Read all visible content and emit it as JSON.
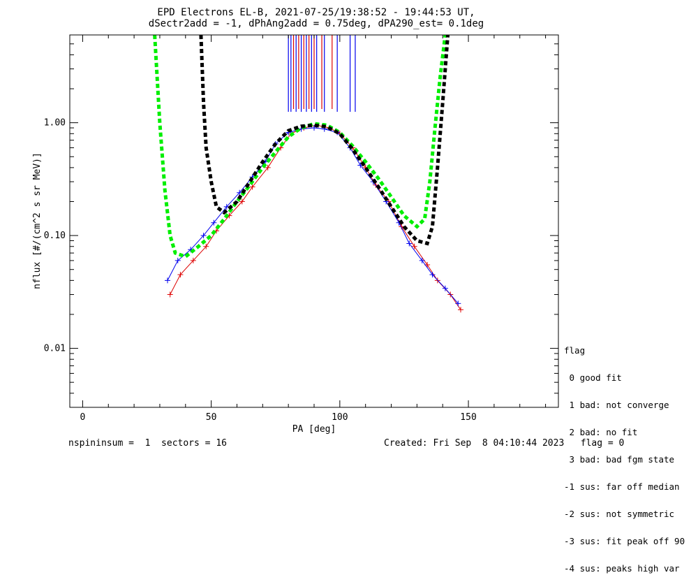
{
  "chart_data": {
    "type": "scatter",
    "title": "EPD Electrons EL-B, 2021-07-25/19:38:52 - 19:44:53 UT,",
    "subtitle": "dSectr2add = -1, dPhAng2add = 0.75deg, dPA290_est=   0.1deg",
    "xlabel": "PA [deg]",
    "ylabel": "nflux [#/(cm^2 s sr MeV)]",
    "xlim": [
      -5,
      185
    ],
    "ylim": [
      0.003,
      6
    ],
    "y_scale": "log",
    "x_ticks": [
      0,
      50,
      100,
      150
    ],
    "x_tick_labels": [
      "0",
      "50",
      "100",
      "150"
    ],
    "y_ticks": [
      0.01,
      0.1,
      1.0
    ],
    "y_tick_labels": [
      "0.01",
      "0.10",
      "1.00"
    ],
    "colors": {
      "red": "#dd0000",
      "blue": "#0000ee",
      "green": "#00ee00",
      "black": "#000000"
    },
    "series": [
      {
        "color": "#dd0000",
        "style": "line+cross",
        "x": [
          34,
          38,
          43,
          48,
          52,
          57,
          62,
          66,
          72,
          77,
          81,
          86,
          91,
          96,
          100,
          105,
          110,
          114,
          119,
          124,
          129,
          134,
          138,
          143,
          147
        ],
        "y": [
          0.03,
          0.045,
          0.06,
          0.08,
          0.11,
          0.15,
          0.2,
          0.27,
          0.4,
          0.6,
          0.8,
          0.9,
          0.95,
          0.9,
          0.8,
          0.6,
          0.4,
          0.28,
          0.2,
          0.12,
          0.08,
          0.055,
          0.04,
          0.03,
          0.022
        ]
      },
      {
        "color": "#0000ee",
        "style": "line+cross",
        "x": [
          33,
          37,
          42,
          47,
          51,
          56,
          61,
          66,
          71,
          75,
          80,
          85,
          90,
          94,
          99,
          104,
          108,
          113,
          118,
          123,
          127,
          132,
          136,
          141,
          146
        ],
        "y": [
          0.04,
          0.06,
          0.075,
          0.1,
          0.13,
          0.18,
          0.24,
          0.33,
          0.45,
          0.65,
          0.82,
          0.88,
          0.9,
          0.88,
          0.82,
          0.6,
          0.42,
          0.3,
          0.2,
          0.13,
          0.085,
          0.06,
          0.045,
          0.034,
          0.025
        ]
      },
      {
        "color": "#00ee00",
        "style": "dashed",
        "x": [
          28,
          30,
          32,
          34,
          36,
          40,
          45,
          50,
          55,
          60,
          65,
          70,
          75,
          80,
          85,
          90,
          95,
          100,
          105,
          110,
          115,
          120,
          125,
          130,
          133,
          135,
          137,
          139,
          141
        ],
        "y": [
          6.0,
          1.0,
          0.25,
          0.1,
          0.07,
          0.065,
          0.08,
          0.1,
          0.14,
          0.2,
          0.28,
          0.4,
          0.55,
          0.75,
          0.9,
          0.98,
          0.95,
          0.82,
          0.62,
          0.45,
          0.32,
          0.22,
          0.15,
          0.12,
          0.14,
          0.3,
          0.9,
          2.5,
          6.0
        ]
      },
      {
        "color": "#000000",
        "style": "dashed",
        "x": [
          46,
          47,
          48,
          50,
          52,
          55,
          60,
          65,
          70,
          75,
          80,
          85,
          90,
          95,
          100,
          105,
          110,
          115,
          120,
          125,
          130,
          134,
          136,
          138,
          140,
          142
        ],
        "y": [
          6.0,
          1.5,
          0.6,
          0.3,
          0.18,
          0.16,
          0.2,
          0.3,
          0.45,
          0.65,
          0.85,
          0.93,
          0.95,
          0.92,
          0.8,
          0.58,
          0.4,
          0.27,
          0.18,
          0.12,
          0.09,
          0.085,
          0.12,
          0.4,
          1.5,
          6.0
        ]
      }
    ],
    "spikes": {
      "red_x": [
        82,
        84,
        86,
        88,
        90,
        93,
        97
      ],
      "blue_x": [
        80,
        81,
        83,
        85,
        87,
        89,
        91,
        94,
        99,
        104,
        106
      ]
    }
  },
  "legend": {
    "title": "flag",
    "items": [
      " 0 good fit",
      " 1 bad: not converge",
      " 2 bad: no fit",
      " 3 bad: bad fgm state",
      "-1 sus: far off median",
      "-2 sus: not symmetric",
      "-3 sus: fit peak off 90",
      "-4 sus: peaks high var"
    ]
  },
  "footer": {
    "left": "nspininsum =  1  sectors = 16",
    "right": "Created: Fri Sep  8 04:10:44 2023   flag = 0"
  }
}
